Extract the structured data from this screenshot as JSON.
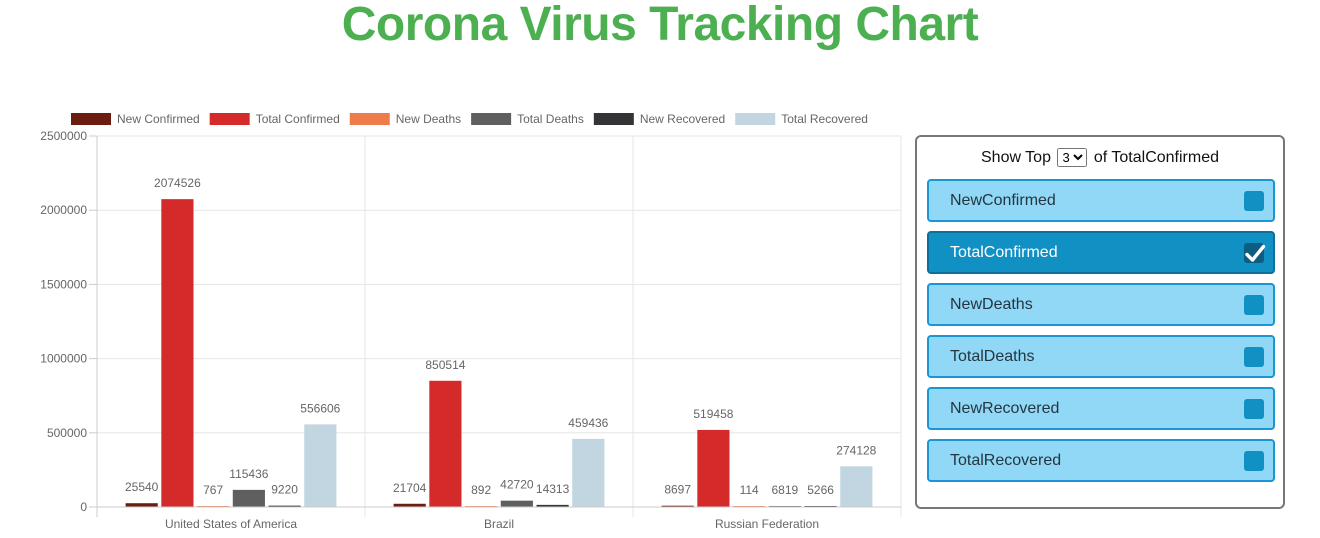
{
  "page": {
    "title": "Corona Virus Tracking Chart"
  },
  "colors": {
    "title": "#4caf50",
    "series": [
      "#6b1d0f",
      "#d42a2a",
      "#ef7a4a",
      "#5f5f5f",
      "#343436",
      "#c1d6e0"
    ],
    "button_bg": "#90d8f5",
    "button_checked_bg": "#1190c4"
  },
  "controls": {
    "show_top_prefix": "Show Top",
    "top_value": "3",
    "top_options": [
      "3"
    ],
    "show_top_suffix": "of TotalConfirmed",
    "metrics": [
      {
        "label": "NewConfirmed",
        "checked": false
      },
      {
        "label": "TotalConfirmed",
        "checked": true
      },
      {
        "label": "NewDeaths",
        "checked": false
      },
      {
        "label": "TotalDeaths",
        "checked": false
      },
      {
        "label": "NewRecovered",
        "checked": false
      },
      {
        "label": "TotalRecovered",
        "checked": false
      }
    ],
    "icons": {
      "check": "checkmark-icon"
    }
  },
  "chart_data": {
    "type": "bar",
    "categories": [
      "United States of America",
      "Brazil",
      "Russian Federation"
    ],
    "series": [
      {
        "name": "New Confirmed",
        "values": [
          25540,
          21704,
          8697
        ]
      },
      {
        "name": "Total Confirmed",
        "values": [
          2074526,
          850514,
          519458
        ]
      },
      {
        "name": "New Deaths",
        "values": [
          767,
          892,
          114
        ]
      },
      {
        "name": "Total Deaths",
        "values": [
          115436,
          42720,
          6819
        ]
      },
      {
        "name": "New Recovered",
        "values": [
          9220,
          14313,
          5266
        ]
      },
      {
        "name": "Total Recovered",
        "values": [
          556606,
          459436,
          274128
        ]
      }
    ],
    "ylim": [
      0,
      2500000
    ],
    "yticks": [
      "0",
      "500000",
      "1000000",
      "1500000",
      "2000000",
      "2500000"
    ],
    "grid": true,
    "legend": "top",
    "data_labels": true
  }
}
